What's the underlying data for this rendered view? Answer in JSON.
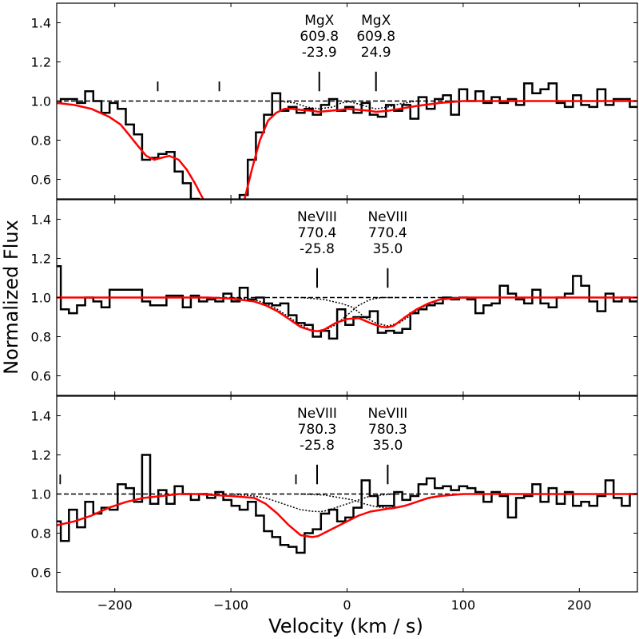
{
  "chart_data": {
    "type": "line",
    "xlabel": "Velocity (km / s)",
    "ylabel": "Normalized Flux",
    "xlim": [
      -250,
      250
    ],
    "ylim": [
      0.5,
      1.5
    ],
    "xticks": [
      -200,
      -100,
      0,
      100,
      200
    ],
    "xtick_labels": [
      "−200",
      "−100",
      "0",
      "100",
      "200"
    ],
    "yticks": [
      0.6,
      0.8,
      1.0,
      1.2,
      1.4
    ],
    "ytick_labels": [
      "0.6",
      "0.8",
      "1.0",
      "1.2",
      "1.4"
    ],
    "colors": {
      "data": "#000000",
      "fit": "#ff0000",
      "components": "#000000",
      "continuum": "#000000"
    },
    "panels": [
      {
        "annotations": [
          {
            "ion": "MgX",
            "wavelength": "609.8",
            "velocity": "-23.9",
            "v": -23.9
          },
          {
            "ion": "MgX",
            "wavelength": "609.8",
            "velocity": "24.9",
            "v": 24.9
          }
        ],
        "small_ticks": [
          -163,
          -110
        ],
        "data_v": [
          -250,
          -243,
          -236,
          -229,
          -222,
          -215,
          -208,
          -201,
          -194,
          -187,
          -180,
          -173,
          -166,
          -159,
          -152,
          -145,
          -138,
          -131,
          -124,
          -117,
          -110,
          -103,
          -96,
          -89,
          -82,
          -75,
          -68,
          -61,
          -54,
          -47,
          -40,
          -33,
          -26,
          -19,
          -12,
          -5,
          2,
          9,
          16,
          23,
          30,
          37,
          44,
          51,
          58,
          65,
          72,
          79,
          86,
          93,
          100,
          107,
          114,
          121,
          128,
          135,
          142,
          149,
          156,
          163,
          170,
          177,
          184,
          191,
          198,
          205,
          212,
          219,
          226,
          233,
          240,
          247
        ],
        "data_flux": [
          0.99,
          1.01,
          1.01,
          0.99,
          1.05,
          1.0,
          0.94,
          0.99,
          0.96,
          0.88,
          0.83,
          0.7,
          0.71,
          0.73,
          0.74,
          0.64,
          0.58,
          0.5,
          0.45,
          0.4,
          0.35,
          0.32,
          0.4,
          0.52,
          0.7,
          0.84,
          0.93,
          1.04,
          0.95,
          0.97,
          0.94,
          0.96,
          0.93,
          0.98,
          1.01,
          0.95,
          0.97,
          0.94,
          0.99,
          0.93,
          0.92,
          0.98,
          0.95,
          0.98,
          0.91,
          1.02,
          0.96,
          1.01,
          1.03,
          0.93,
          1.06,
          1.0,
          1.05,
          0.99,
          1.02,
          0.99,
          1.01,
          0.98,
          1.09,
          1.04,
          1.06,
          1.09,
          0.99,
          0.97,
          1.03,
          0.98,
          0.97,
          1.06,
          0.98,
          1.01,
          1.01,
          0.97
        ],
        "fit_v": [
          -250,
          -235,
          -220,
          -205,
          -195,
          -188,
          -180,
          -173,
          -166,
          -160,
          -153,
          -145,
          -138,
          -131,
          -124,
          -117,
          -110,
          -103,
          -96,
          -89,
          -82,
          -75,
          -68,
          -61,
          -54,
          -47,
          -40,
          -30,
          -24,
          -15,
          -5,
          0,
          10,
          20,
          25,
          35,
          45,
          60,
          80,
          100,
          130,
          160,
          200,
          250
        ],
        "fit_flux": [
          0.99,
          0.98,
          0.96,
          0.92,
          0.88,
          0.83,
          0.77,
          0.72,
          0.7,
          0.71,
          0.72,
          0.7,
          0.65,
          0.58,
          0.5,
          0.42,
          0.35,
          0.3,
          0.36,
          0.48,
          0.65,
          0.8,
          0.9,
          0.94,
          0.96,
          0.96,
          0.955,
          0.95,
          0.945,
          0.95,
          0.955,
          0.96,
          0.955,
          0.95,
          0.945,
          0.95,
          0.96,
          0.975,
          0.99,
          1.0,
          1.0,
          1.0,
          1.0,
          1.0
        ],
        "components": [
          {
            "v": [
              -60,
              -45,
              -35,
              -24,
              -12,
              -5,
              5
            ],
            "flux": [
              1.0,
              0.99,
              0.97,
              0.96,
              0.97,
              0.99,
              1.0
            ]
          },
          {
            "v": [
              0,
              10,
              18,
              25,
              35,
              45,
              60
            ],
            "flux": [
              1.0,
              0.985,
              0.97,
              0.96,
              0.97,
              0.985,
              1.0
            ]
          }
        ]
      },
      {
        "annotations": [
          {
            "ion": "NeVIII",
            "wavelength": "770.4",
            "velocity": "-25.8",
            "v": -25.8
          },
          {
            "ion": "NeVIII",
            "wavelength": "770.4",
            "velocity": "35.0",
            "v": 35.0
          }
        ],
        "small_ticks": [],
        "data_v": [
          -250,
          -243,
          -236,
          -229,
          -222,
          -215,
          -208,
          -201,
          -194,
          -187,
          -180,
          -173,
          -166,
          -159,
          -152,
          -145,
          -138,
          -131,
          -124,
          -117,
          -110,
          -103,
          -96,
          -89,
          -82,
          -75,
          -68,
          -61,
          -54,
          -47,
          -40,
          -33,
          -26,
          -19,
          -12,
          -5,
          2,
          9,
          16,
          23,
          30,
          37,
          44,
          51,
          58,
          65,
          72,
          79,
          86,
          93,
          100,
          107,
          114,
          121,
          128,
          135,
          142,
          149,
          156,
          163,
          170,
          177,
          184,
          191,
          198,
          205,
          212,
          219,
          226,
          233,
          240,
          247
        ],
        "data_flux": [
          1.16,
          0.94,
          0.92,
          0.96,
          1.0,
          0.98,
          0.95,
          1.04,
          1.04,
          1.04,
          1.04,
          0.98,
          0.96,
          0.96,
          1.01,
          1.01,
          0.95,
          1.01,
          0.98,
          0.99,
          0.98,
          1.02,
          0.98,
          1.05,
          0.99,
          1.0,
          0.97,
          0.96,
          0.97,
          0.91,
          0.87,
          0.86,
          0.8,
          0.83,
          0.79,
          0.94,
          0.86,
          0.9,
          0.9,
          0.93,
          0.82,
          0.83,
          0.82,
          0.84,
          0.92,
          0.94,
          0.96,
          0.97,
          1.0,
          0.99,
          1.0,
          0.99,
          0.92,
          0.96,
          0.97,
          1.06,
          1.02,
          0.99,
          0.97,
          1.04,
          0.97,
          0.95,
          1.0,
          1.02,
          1.11,
          1.06,
          0.98,
          0.93,
          1.02,
          0.98,
          1.0,
          0.98
        ],
        "fit_v": [
          -250,
          -200,
          -150,
          -120,
          -100,
          -80,
          -70,
          -60,
          -50,
          -40,
          -30,
          -25,
          -20,
          -10,
          0,
          10,
          20,
          30,
          35,
          40,
          50,
          60,
          70,
          80,
          100,
          150,
          200,
          250
        ],
        "fit_flux": [
          1.0,
          1.0,
          1.0,
          1.0,
          0.995,
          0.98,
          0.96,
          0.93,
          0.89,
          0.85,
          0.83,
          0.828,
          0.835,
          0.87,
          0.89,
          0.895,
          0.87,
          0.85,
          0.848,
          0.855,
          0.9,
          0.94,
          0.97,
          0.99,
          1.0,
          1.0,
          1.0,
          1.0
        ],
        "components": [
          {
            "v": [
              -100,
              -80,
              -70,
              -60,
              -50,
              -40,
              -30,
              -25,
              -20,
              -10,
              0,
              10,
              20,
              30,
              45
            ],
            "flux": [
              1.0,
              0.99,
              0.97,
              0.94,
              0.9,
              0.86,
              0.83,
              0.828,
              0.83,
              0.86,
              0.91,
              0.96,
              0.99,
              1.0,
              1.0
            ]
          },
          {
            "v": [
              -40,
              -20,
              -5,
              5,
              15,
              25,
              35,
              45,
              55,
              65,
              80,
              100
            ],
            "flux": [
              1.0,
              0.99,
              0.97,
              0.95,
              0.9,
              0.87,
              0.855,
              0.87,
              0.91,
              0.95,
              0.99,
              1.0
            ]
          }
        ]
      },
      {
        "annotations": [
          {
            "ion": "NeVIII",
            "wavelength": "780.3",
            "velocity": "-25.8",
            "v": -25.8
          },
          {
            "ion": "NeVIII",
            "wavelength": "780.3",
            "velocity": "35.0",
            "v": 35.0
          }
        ],
        "small_ticks": [
          -247,
          -44
        ],
        "data_v": [
          -250,
          -243,
          -236,
          -229,
          -222,
          -215,
          -208,
          -201,
          -194,
          -187,
          -180,
          -173,
          -166,
          -159,
          -152,
          -145,
          -138,
          -131,
          -124,
          -117,
          -110,
          -103,
          -96,
          -89,
          -82,
          -75,
          -68,
          -61,
          -54,
          -47,
          -40,
          -33,
          -26,
          -19,
          -12,
          -5,
          2,
          9,
          16,
          23,
          30,
          37,
          44,
          51,
          58,
          65,
          72,
          79,
          86,
          93,
          100,
          107,
          114,
          121,
          128,
          135,
          142,
          149,
          156,
          163,
          170,
          177,
          184,
          191,
          198,
          205,
          212,
          219,
          226,
          233,
          240,
          247
        ],
        "data_flux": [
          0.86,
          0.76,
          0.92,
          0.83,
          0.96,
          0.9,
          0.93,
          0.92,
          1.05,
          1.03,
          0.96,
          1.2,
          0.95,
          1.02,
          0.95,
          1.04,
          1.0,
          0.97,
          1.0,
          0.98,
          1.01,
          0.97,
          0.94,
          0.92,
          0.96,
          0.89,
          0.81,
          0.78,
          0.74,
          0.73,
          0.7,
          0.8,
          0.82,
          0.9,
          0.92,
          0.86,
          0.88,
          0.93,
          1.07,
          0.99,
          0.94,
          0.94,
          1.01,
          0.97,
          0.99,
          1.05,
          1.08,
          1.03,
          1.04,
          1.02,
          1.04,
          1.03,
          1.01,
          0.96,
          1.01,
          0.99,
          0.88,
          0.98,
          0.99,
          1.05,
          0.96,
          1.03,
          0.95,
          1.01,
          0.94,
          0.96,
          0.94,
          0.99,
          1.07,
          0.98,
          0.94,
          1.0
        ],
        "fit_v": [
          -250,
          -235,
          -220,
          -205,
          -190,
          -175,
          -160,
          -145,
          -130,
          -100,
          -80,
          -70,
          -60,
          -50,
          -40,
          -30,
          -25,
          -20,
          -10,
          0,
          10,
          20,
          30,
          35,
          40,
          50,
          60,
          70,
          80,
          100,
          150,
          200,
          250
        ],
        "fit_flux": [
          0.84,
          0.86,
          0.89,
          0.93,
          0.96,
          0.98,
          0.99,
          1.0,
          1.0,
          0.99,
          0.98,
          0.95,
          0.9,
          0.84,
          0.79,
          0.78,
          0.785,
          0.8,
          0.83,
          0.86,
          0.89,
          0.91,
          0.92,
          0.925,
          0.928,
          0.94,
          0.96,
          0.98,
          0.99,
          1.0,
          1.0,
          1.0,
          1.0
        ],
        "components": [
          {
            "v": [
              -100,
              -80,
              -70,
              -60,
              -50,
              -40,
              -30,
              -25,
              -20,
              -10,
              0,
              10,
              20,
              40
            ],
            "flux": [
              1.0,
              0.99,
              0.98,
              0.96,
              0.94,
              0.92,
              0.912,
              0.91,
              0.912,
              0.93,
              0.95,
              0.97,
              0.99,
              1.0
            ]
          },
          {
            "v": [
              -40,
              -20,
              -5,
              5,
              15,
              25,
              35,
              45,
              55,
              65,
              80,
              100
            ],
            "flux": [
              1.0,
              0.995,
              0.98,
              0.97,
              0.95,
              0.935,
              0.928,
              0.935,
              0.95,
              0.97,
              0.99,
              1.0
            ]
          }
        ]
      }
    ]
  }
}
